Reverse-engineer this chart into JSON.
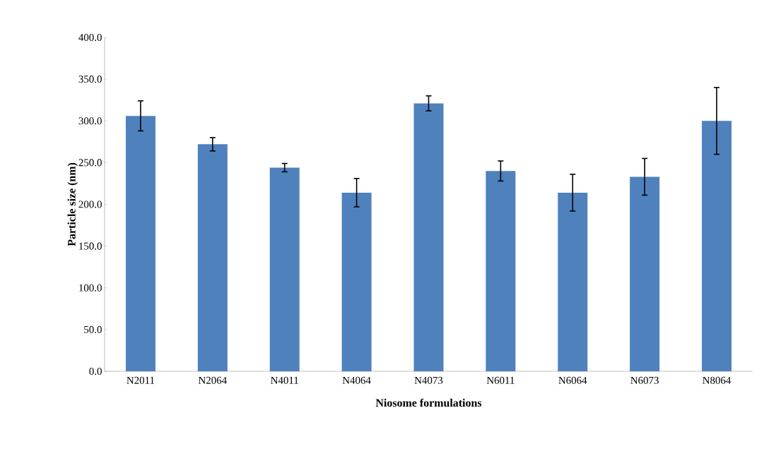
{
  "chart_data": {
    "type": "bar",
    "xlabel": "Niosome formulations",
    "ylabel": "Particle size (nm)",
    "categories": [
      "N2011",
      "N2064",
      "N4011",
      "N4064",
      "N4073",
      "N6011",
      "N6064",
      "N6073",
      "N8064"
    ],
    "values": [
      306,
      272,
      244,
      214,
      321,
      240,
      214,
      233,
      300
    ],
    "errors": [
      18,
      8,
      5,
      17,
      9,
      12,
      22,
      22,
      40
    ],
    "color": "#4f81bd",
    "ylim": [
      0,
      400
    ],
    "yticks": [
      {
        "value": 0,
        "label": "0.0"
      },
      {
        "value": 50,
        "label": "50.0"
      },
      {
        "value": 100,
        "label": "100.0"
      },
      {
        "value": 150,
        "label": "150.0"
      },
      {
        "value": 200,
        "label": "200.0"
      },
      {
        "value": 250,
        "label": "250.0"
      },
      {
        "value": 300,
        "label": "300.0"
      },
      {
        "value": 350,
        "label": "350.0"
      },
      {
        "value": 400,
        "label": "400.0"
      }
    ],
    "grid": false
  }
}
